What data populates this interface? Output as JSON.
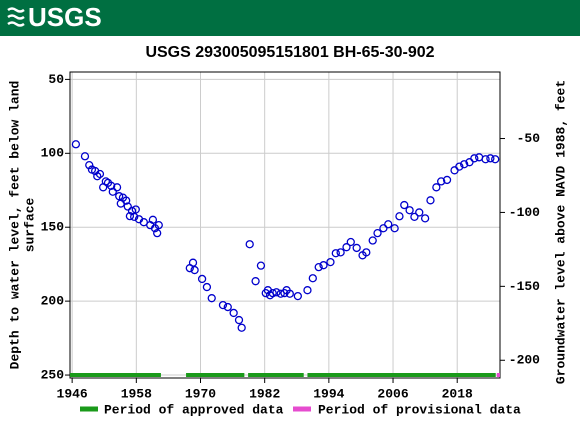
{
  "header": {
    "logo": "USGS"
  },
  "chart_data": {
    "type": "scatter",
    "title": "USGS 293005095151801 BH-65-30-902",
    "ylabel": [
      "Depth to water level, feet below land",
      "surface"
    ],
    "y2label": "Groundwater level above NAVD 1988, feet",
    "xlim": [
      1945.6,
      2026
    ],
    "xticks": [
      1946,
      1958,
      1970,
      1982,
      1994,
      2006,
      2018
    ],
    "ylim": [
      45,
      252
    ],
    "yticks": [
      50,
      100,
      150,
      200,
      250
    ],
    "y2lim": [
      -5,
      -212
    ],
    "y2ticks": [
      -50,
      -100,
      -150,
      -200
    ],
    "grid": true,
    "inverted_y": true,
    "series": [
      {
        "name": "Water level",
        "color": "#0000cc",
        "x": [
          1946.7,
          1948.4,
          1949.2,
          1949.7,
          1950.3,
          1950.7,
          1951.2,
          1951.8,
          1952.3,
          1952.7,
          1953.3,
          1953.6,
          1954.4,
          1954.8,
          1955.1,
          1955.5,
          1956.1,
          1956.4,
          1956.8,
          1957.2,
          1957.6,
          1957.9,
          1958.5,
          1959.4,
          1960.6,
          1961.1,
          1961.5,
          1961.9,
          1962.2,
          1968,
          1968.6,
          1968.9,
          1970.3,
          1971.2,
          1972.1,
          1974.2,
          1975.1,
          1976.2,
          1977.2,
          1977.7,
          1979.2,
          1980.3,
          1981.3,
          1982.2,
          1982.6,
          1983,
          1983.5,
          1984.2,
          1985,
          1985.7,
          1986.1,
          1986.7,
          1988.2,
          1990,
          1991,
          1992.1,
          1993,
          1994.3,
          1995.3,
          1996.2,
          1997.3,
          1998.1,
          1999.2,
          2000.3,
          2001,
          2002.2,
          2003.1,
          2004.2,
          2005.1,
          2006.3,
          2007.2,
          2008.1,
          2009.1,
          2010,
          2010.9,
          2012,
          2013,
          2014.1,
          2015,
          2016.1,
          2017.5,
          2018.4,
          2019.3,
          2020.3,
          2021.2,
          2022.1,
          2023.3,
          2024.2,
          2025.1
        ],
        "values": [
          93.9,
          102,
          108,
          111,
          112,
          115.5,
          114,
          123,
          119,
          120,
          122,
          126,
          123,
          129,
          134,
          130,
          132,
          136,
          142.5,
          139,
          143,
          138,
          144.6,
          146.6,
          148.6,
          145,
          150.7,
          154,
          148.6,
          177.7,
          174,
          179,
          185,
          190.5,
          198,
          202.7,
          204,
          208,
          212.8,
          218,
          161.5,
          186.5,
          176,
          194.6,
          192.6,
          196,
          194.6,
          194,
          195,
          194.6,
          192.6,
          195,
          196.6,
          192.6,
          184.5,
          177,
          175.7,
          173.6,
          167.6,
          167,
          163.5,
          160,
          164,
          169,
          167,
          159,
          154,
          150.7,
          148,
          150.7,
          142.6,
          135,
          138.5,
          143,
          140,
          144,
          131.8,
          123,
          119,
          118,
          111.5,
          109,
          107.4,
          106,
          103.4,
          102.7,
          104,
          103.4,
          104
        ]
      }
    ],
    "approved_periods": [
      [
        1945.6,
        1962.6
      ],
      [
        1967.3,
        1978.2
      ],
      [
        1978.9,
        1989.3
      ],
      [
        1990,
        2025.2
      ]
    ],
    "provisional_periods": [
      [
        2025.4,
        2026
      ]
    ],
    "approved_color": "#1a9a1a",
    "provisional_color": "#e64ccf",
    "legend": [
      "Period of approved data",
      "Period of provisional data"
    ]
  }
}
